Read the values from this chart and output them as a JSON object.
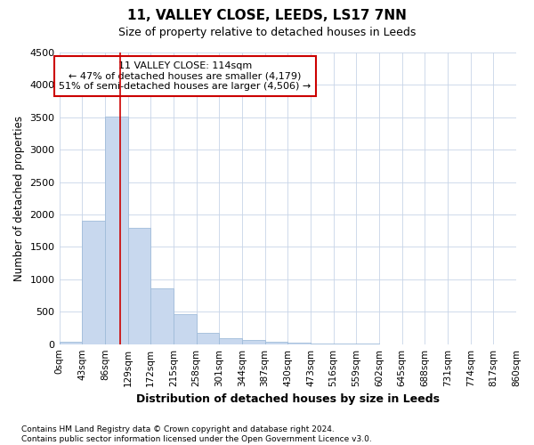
{
  "title": "11, VALLEY CLOSE, LEEDS, LS17 7NN",
  "subtitle": "Size of property relative to detached houses in Leeds",
  "xlabel": "Distribution of detached houses by size in Leeds",
  "ylabel": "Number of detached properties",
  "property_size": 114,
  "annotation_line1": "11 VALLEY CLOSE: 114sqm",
  "annotation_line2": "← 47% of detached houses are smaller (4,179)",
  "annotation_line3": "51% of semi-detached houses are larger (4,506) →",
  "footer_line1": "Contains HM Land Registry data © Crown copyright and database right 2024.",
  "footer_line2": "Contains public sector information licensed under the Open Government Licence v3.0.",
  "bar_color": "#c8d8ee",
  "bar_edge_color": "#a0bcda",
  "grid_color": "#c8d4e8",
  "annotation_box_color": "#cc0000",
  "vline_color": "#cc0000",
  "ylim": [
    0,
    4500
  ],
  "bin_edges": [
    0,
    43,
    86,
    129,
    172,
    215,
    258,
    301,
    344,
    387,
    430,
    473,
    516,
    559,
    602,
    645,
    688,
    731,
    774,
    817,
    860
  ],
  "bin_labels": [
    "0sqm",
    "43sqm",
    "86sqm",
    "129sqm",
    "172sqm",
    "215sqm",
    "258sqm",
    "301sqm",
    "344sqm",
    "387sqm",
    "430sqm",
    "473sqm",
    "516sqm",
    "559sqm",
    "602sqm",
    "645sqm",
    "688sqm",
    "731sqm",
    "774sqm",
    "817sqm",
    "860sqm"
  ],
  "bar_heights": [
    30,
    1900,
    3510,
    1790,
    860,
    460,
    175,
    90,
    58,
    35,
    18,
    10,
    5,
    3,
    2,
    1,
    1,
    1,
    1,
    1
  ]
}
